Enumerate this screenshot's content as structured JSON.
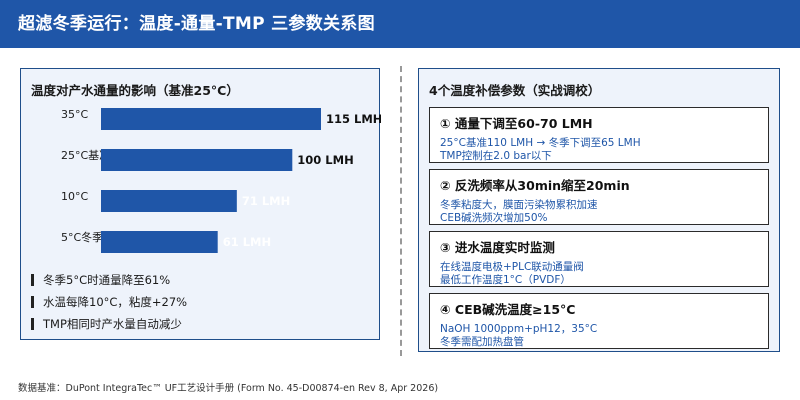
{
  "header": {
    "title": "超滤冬季运行：温度-通量-TMP 三参数关系图"
  },
  "left_panel": {
    "title": "温度对产水通量的影响（基准25°C）",
    "bullets": [
      "冬季5°C时通量降至61%",
      "水温每降10°C，粘度+27%",
      "TMP相同时产水量自动减少"
    ]
  },
  "chart_data": {
    "type": "bar",
    "orientation": "horizontal",
    "title": "温度对产水通量的影响（基准25°C）",
    "categories": [
      "35°C",
      "25°C基准",
      "10°C",
      "5°C冬季"
    ],
    "values": [
      115,
      100,
      71,
      61
    ],
    "value_labels": [
      "115 LMH",
      "100 LMH",
      "71 LMH",
      "61 LMH"
    ],
    "unit": "LMH",
    "xlim": [
      0,
      115
    ],
    "grid": false,
    "bar_color": "#1f56a8",
    "label_colors": [
      "#111111",
      "#111111",
      "#ffffff",
      "#ffffff"
    ]
  },
  "right_panel": {
    "title": "4个温度补偿参数（实战调校）",
    "cards": [
      {
        "title": "① 通量下调至60-70 LMH",
        "line1": "25°C基准110 LMH → 冬季下调至65 LMH",
        "line2": "TMP控制在2.0 bar以下"
      },
      {
        "title": "② 反洗频率从30min缩至20min",
        "line1": "冬季粘度大，膜面污染物累积加速",
        "line2": "CEB碱洗频次增加50%"
      },
      {
        "title": "③ 进水温度实时监测",
        "line1": "在线温度电极+PLC联动通量阀",
        "line2": "最低工作温度1°C（PVDF）"
      },
      {
        "title": "④ CEB碱洗温度≥15°C",
        "line1": "NaOH 1000ppm+pH12，35°C",
        "line2": "冬季需配加热盘管"
      }
    ]
  },
  "footer": {
    "text": "数据基准：DuPont IntegraTec™ UF工艺设计手册 (Form No. 45-D00874-en Rev 8, Apr 2026)"
  },
  "colors": {
    "header_bg": "#1f56a8",
    "panel_bg": "#eef3fb",
    "panel_border": "#1f4e8a",
    "accent_text": "#1f56a8"
  }
}
